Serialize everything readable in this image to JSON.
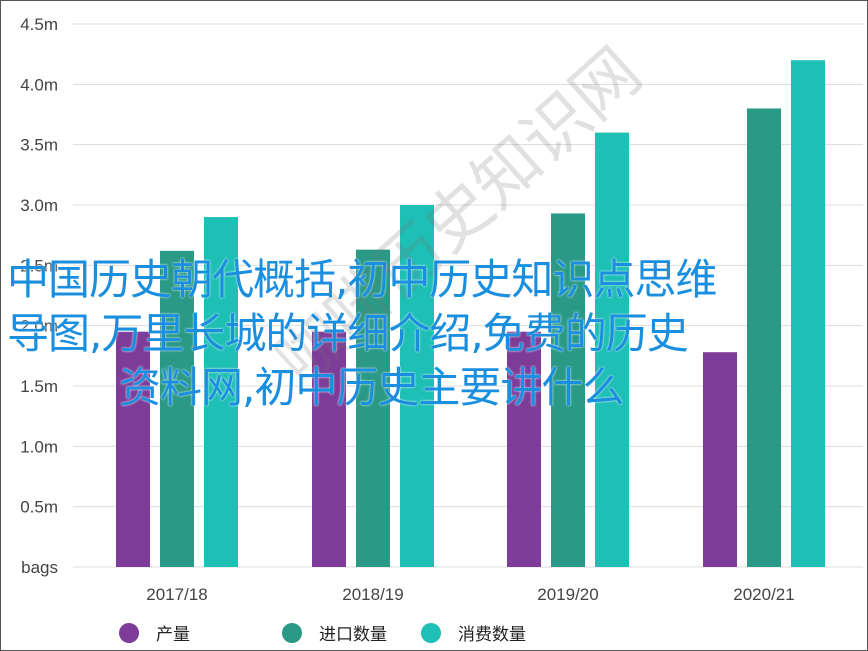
{
  "chart_data": {
    "type": "bar",
    "categories": [
      "2017/18",
      "2018/19",
      "2019/20",
      "2020/21"
    ],
    "series": [
      {
        "name": "产量",
        "color": "#7d3c98",
        "values": [
          1.95,
          1.95,
          1.95,
          1.78
        ]
      },
      {
        "name": "进口数量",
        "color": "#2a9a86",
        "values": [
          2.62,
          2.63,
          2.93,
          3.8
        ]
      },
      {
        "name": "消费数量",
        "color": "#1ebfb5",
        "values": [
          2.9,
          3.0,
          3.6,
          4.2
        ]
      }
    ],
    "y_ticks": [
      "bags",
      "0.5m",
      "1.0m",
      "1.5m",
      "2.0m",
      "2.5m",
      "3.0m",
      "3.5m",
      "4.0m",
      "4.5m"
    ],
    "ylim": [
      0,
      4.5
    ],
    "grid": true,
    "legend_position": "bottom",
    "title": "",
    "xlabel": "",
    "ylabel": ""
  },
  "overlay": {
    "line1": "中国历史朝代概括,初中历史知识点思维",
    "line2": "导图,万里长城的详细介绍,免费的历史",
    "line3": "资料网,初中历史主要讲什么"
  },
  "watermark": {
    "text": "咖啡历史知识网"
  }
}
